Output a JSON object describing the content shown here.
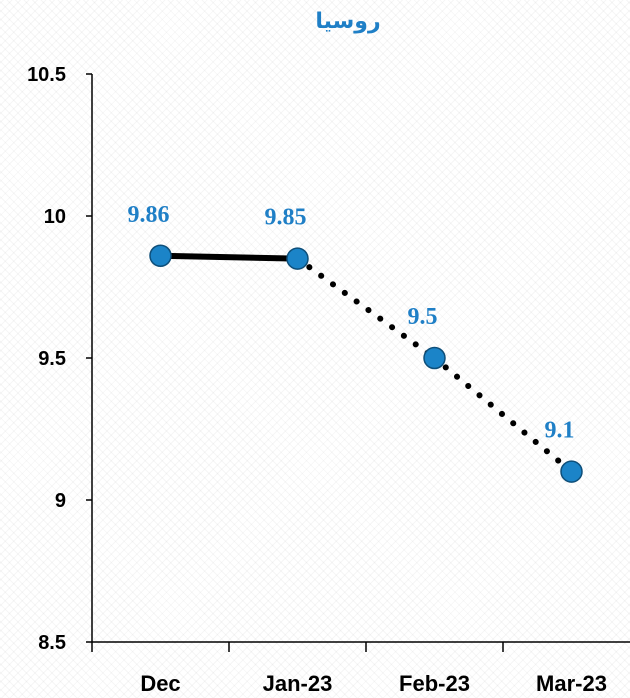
{
  "chart_data": {
    "type": "line",
    "title": "روسيا",
    "categories": [
      "Dec",
      "Jan-23",
      "Feb-23",
      "Mar-23"
    ],
    "series": [
      {
        "values": [
          9.86,
          9.85,
          9.5,
          9.1
        ]
      }
    ],
    "data_labels": [
      "9.86",
      "9.85",
      "9.5",
      "9.1"
    ],
    "y_ticks": [
      "8.5",
      "9",
      "9.5",
      "10",
      "10.5"
    ],
    "ylim": [
      8.5,
      10.5
    ],
    "line_style": {
      "solid_segment_end_index": 1,
      "dotted_after": true
    },
    "colors": {
      "title": "#1F7FC6",
      "marker_fill": "#1B84C8",
      "marker_edge": "#0E4F7A",
      "label": "#1F7FC6",
      "line": "#000000"
    },
    "grid": false,
    "legend": "none"
  }
}
